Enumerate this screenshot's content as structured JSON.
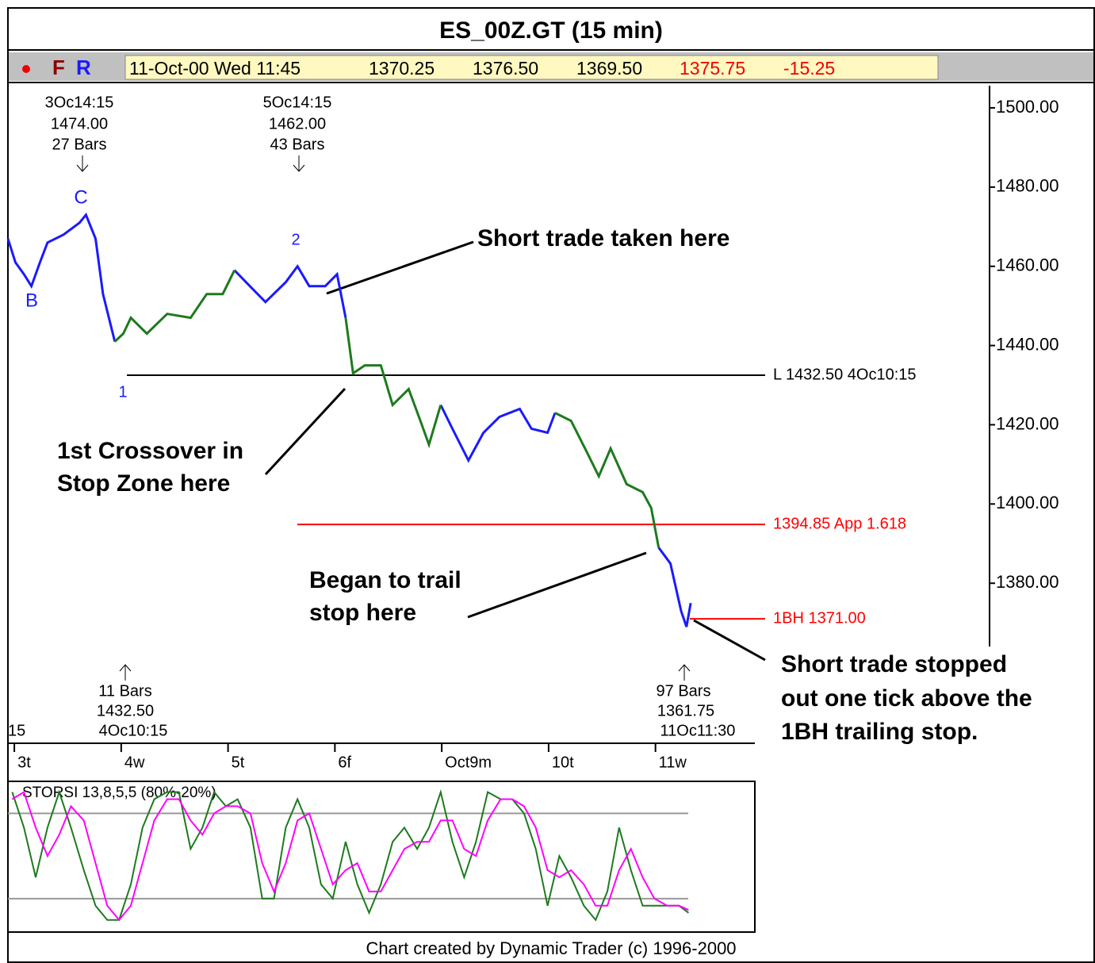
{
  "chart_data": [
    {
      "type": "line",
      "title": "ES_00Z.GT (15 min)",
      "xlim": [
        -0.06,
        6.93
      ],
      "xticks": [
        {
          "value": 0,
          "label": "3t"
        },
        {
          "value": 1,
          "label": "4w"
        },
        {
          "value": 2,
          "label": "5t"
        },
        {
          "value": 3,
          "label": "6f"
        },
        {
          "value": 4,
          "label": "Oct9m"
        },
        {
          "value": 5,
          "label": "10t"
        },
        {
          "value": 6,
          "label": "11w"
        }
      ],
      "ylim": [
        1340,
        1505.6
      ],
      "yticks": [
        {
          "value": 1500,
          "label": "1500.00"
        },
        {
          "value": 1480,
          "label": "1480.00"
        },
        {
          "value": 1460,
          "label": "1460.00"
        },
        {
          "value": 1440,
          "label": "1440.00"
        },
        {
          "value": 1420,
          "label": "1420.00"
        },
        {
          "value": 1400,
          "label": "1400.00"
        },
        {
          "value": 1380,
          "label": "1380.00"
        }
      ],
      "x": [
        -0.06,
        0.01,
        0.09,
        0.16,
        0.24,
        0.31,
        0.46,
        0.61,
        0.67,
        0.76,
        0.83,
        0.94,
        1.02,
        1.09,
        1.24,
        1.43,
        1.65,
        1.8,
        1.95,
        2.06,
        2.24,
        2.35,
        2.54,
        2.65,
        2.76,
        2.91,
        3.02,
        3.1,
        3.17,
        3.28,
        3.43,
        3.54,
        3.69,
        3.8,
        3.88,
        3.99,
        4.1,
        4.25,
        4.39,
        4.54,
        4.73,
        4.84,
        4.99,
        5.06,
        5.21,
        5.36,
        5.47,
        5.58,
        5.73,
        5.88,
        5.96,
        6.03,
        6.14,
        6.24,
        6.29,
        6.33
      ],
      "series": [
        {
          "color": "#1a1aff",
          "values": [
            1467,
            1461,
            1458,
            1455,
            1461,
            1466,
            1468,
            1471,
            1473,
            1467,
            1453,
            1441,
            null,
            null,
            null,
            null,
            null,
            null,
            null,
            1459,
            1454,
            1451,
            1456,
            1460,
            1455,
            1455,
            1458,
            1447,
            null,
            null,
            null,
            null,
            null,
            null,
            null,
            1425,
            1419,
            1411,
            1418,
            1422,
            1424,
            1419,
            1418,
            1423,
            null,
            null,
            null,
            null,
            null,
            null,
            null,
            1389,
            1385,
            1373,
            1369,
            1375
          ]
        },
        {
          "color": "#1e7a1e",
          "values": [
            null,
            null,
            null,
            null,
            null,
            null,
            null,
            null,
            null,
            null,
            null,
            1441,
            1443,
            1447,
            1443,
            1448,
            1447,
            1453,
            1453,
            1459,
            null,
            null,
            null,
            null,
            null,
            null,
            null,
            1447,
            1433,
            1435,
            1435,
            1425,
            1429,
            1421,
            1415,
            1425,
            null,
            null,
            null,
            null,
            null,
            null,
            null,
            1423,
            1421,
            1413,
            1407,
            1414,
            1405,
            1403,
            1399,
            1389,
            null,
            null,
            null,
            null
          ]
        }
      ],
      "hlines": [
        {
          "value": 1432.5,
          "label": "L 1432.50 4Oc10:15",
          "color": "#000000"
        },
        {
          "value": 1394.85,
          "label": "1394.85 App 1.618",
          "color": "#ff0000"
        },
        {
          "value": 1371,
          "label": "1BH 1371.00",
          "color": "#ff0000"
        }
      ],
      "annotations": {
        "peak_c": [
          "3Oc14:15",
          "1474.00",
          "27 Bars"
        ],
        "peak_2": [
          "5Oc14:15",
          "1462.00",
          "43 Bars"
        ],
        "low_1": [
          "11 Bars",
          "1432.50",
          "4Oc10:15"
        ],
        "low_end": [
          "97 Bars",
          "1361.75",
          "11Oc11:30"
        ],
        "waves": [
          "C",
          "B",
          "1",
          "2"
        ],
        "cut": "15",
        "short_taken": "Short trade taken here",
        "crossover": [
          "1st Crossover in",
          "Stop Zone here"
        ],
        "trail": [
          "Began to trail",
          "stop here"
        ],
        "stopped": [
          "Short trade stopped",
          "out one tick above the",
          "1BH trailing stop."
        ]
      }
    },
    {
      "type": "line",
      "title": "STORSI 13,8,5,5 (80%-20%)",
      "xlim": [
        -0.06,
        6.93
      ],
      "ylim": [
        -3,
        102
      ],
      "levels": [
        80,
        20
      ],
      "x": [
        -0.02,
        0.09,
        0.2,
        0.31,
        0.42,
        0.53,
        0.65,
        0.76,
        0.87,
        0.98,
        1.09,
        1.2,
        1.31,
        1.43,
        1.54,
        1.65,
        1.76,
        1.87,
        1.98,
        2.09,
        2.21,
        2.32,
        2.43,
        2.54,
        2.65,
        2.76,
        2.87,
        2.98,
        3.1,
        3.21,
        3.32,
        3.43,
        3.54,
        3.65,
        3.77,
        3.88,
        3.99,
        4.1,
        4.21,
        4.32,
        4.43,
        4.55,
        4.66,
        4.77,
        4.88,
        4.99,
        5.1,
        5.21,
        5.33,
        5.44,
        5.55,
        5.66,
        5.77,
        5.88,
        5.99,
        6.11,
        6.22,
        6.31
      ],
      "series": [
        {
          "color": "#1e7a1e",
          "values": [
            95,
            70,
            35,
            70,
            95,
            70,
            40,
            15,
            5,
            5,
            30,
            70,
            90,
            95,
            95,
            55,
            70,
            95,
            85,
            90,
            70,
            20,
            20,
            70,
            90,
            70,
            30,
            20,
            60,
            30,
            10,
            30,
            60,
            70,
            55,
            70,
            95,
            60,
            35,
            60,
            95,
            90,
            90,
            80,
            55,
            15,
            50,
            35,
            15,
            5,
            25,
            70,
            40,
            15,
            15,
            15,
            15,
            10
          ]
        },
        {
          "color": "#ff00ff",
          "values": [
            90,
            95,
            70,
            50,
            65,
            85,
            75,
            45,
            15,
            5,
            15,
            45,
            75,
            90,
            90,
            75,
            65,
            80,
            85,
            85,
            80,
            45,
            25,
            45,
            75,
            80,
            55,
            30,
            40,
            45,
            25,
            25,
            40,
            55,
            60,
            60,
            75,
            75,
            55,
            50,
            75,
            90,
            90,
            85,
            70,
            40,
            35,
            40,
            30,
            15,
            15,
            40,
            55,
            35,
            20,
            15,
            15,
            12
          ]
        }
      ]
    }
  ],
  "status": {
    "flags": [
      "F",
      "R"
    ],
    "stamp": "11-Oct-00 Wed 11:45",
    "open": "1370.25",
    "high": "1376.50",
    "low": "1369.50",
    "close": "1375.75",
    "change": "-15.25"
  },
  "footer": "Chart created by Dynamic Trader (c) 1996-2000"
}
